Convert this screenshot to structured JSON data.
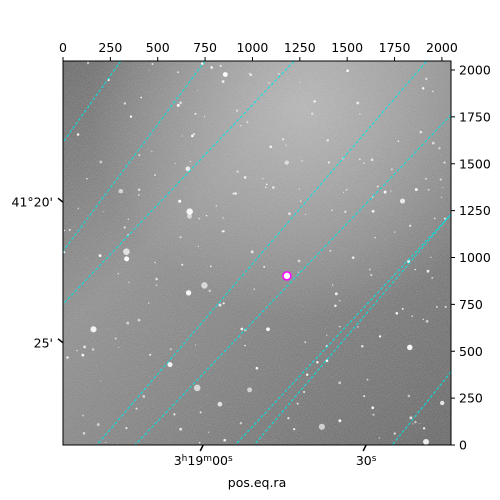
{
  "chart_data": {
    "type": "image",
    "title": "",
    "xlabel": "pos.eq.ra",
    "ylabel": "",
    "pixel_axes": {
      "x": {
        "range": [
          0,
          2048
        ],
        "ticks": [
          0,
          250,
          500,
          750,
          1000,
          1250,
          1500,
          1750,
          2000
        ],
        "tick_labels": [
          "0",
          "250",
          "500",
          "750",
          "1000",
          "1250",
          "1500",
          "1750",
          "2000"
        ],
        "location": "top"
      },
      "y": {
        "range": [
          0,
          2048
        ],
        "ticks": [
          0,
          250,
          500,
          750,
          1000,
          1250,
          1500,
          1750,
          2000
        ],
        "tick_labels": [
          "0",
          "250",
          "500",
          "750",
          "1000",
          "1250",
          "1500",
          "1750",
          "2000"
        ],
        "location": "right"
      }
    },
    "world_axes": {
      "ra_tick_labels": [
        {
          "label": "3h19m00s",
          "pix": [
            740,
            0
          ]
        },
        {
          "label": "30s",
          "pix": [
            1600,
            0
          ]
        }
      ],
      "dec_tick_labels": [
        {
          "label": "41°20'",
          "pix": [
            0,
            1295
          ]
        },
        {
          "label": "25'",
          "pix": [
            0,
            545
          ]
        }
      ]
    },
    "grid": true,
    "grid_color": "#00e5e5",
    "grid_lines": [
      {
        "family": "ra",
        "from": [
          305,
          2048
        ],
        "to": [
          -10,
          1600
        ]
      },
      {
        "family": "ra",
        "from": [
          750,
          2048
        ],
        "to": [
          -10,
          1020
        ]
      },
      {
        "family": "ra",
        "from": [
          2048,
          1760
        ],
        "to": [
          370,
          -10
        ]
      },
      {
        "family": "ra",
        "from": [
          2048,
          1230
        ],
        "to": [
          900,
          -10
        ]
      },
      {
        "family": "ra",
        "from": [
          2048,
          390
        ],
        "to": [
          1730,
          -10
        ]
      },
      {
        "family": "dec",
        "from": [
          -10,
          740
        ],
        "to": [
          1220,
          2048
        ]
      },
      {
        "family": "dec",
        "from": [
          170,
          -10
        ],
        "to": [
          1920,
          2048
        ]
      },
      {
        "family": "dec",
        "from": [
          1000,
          -10
        ],
        "to": [
          2048,
          1230
        ]
      }
    ],
    "marker": {
      "shape": "circle",
      "pix": [
        1182,
        902
      ],
      "color": "#ff00ff"
    },
    "colormap": "gray"
  }
}
